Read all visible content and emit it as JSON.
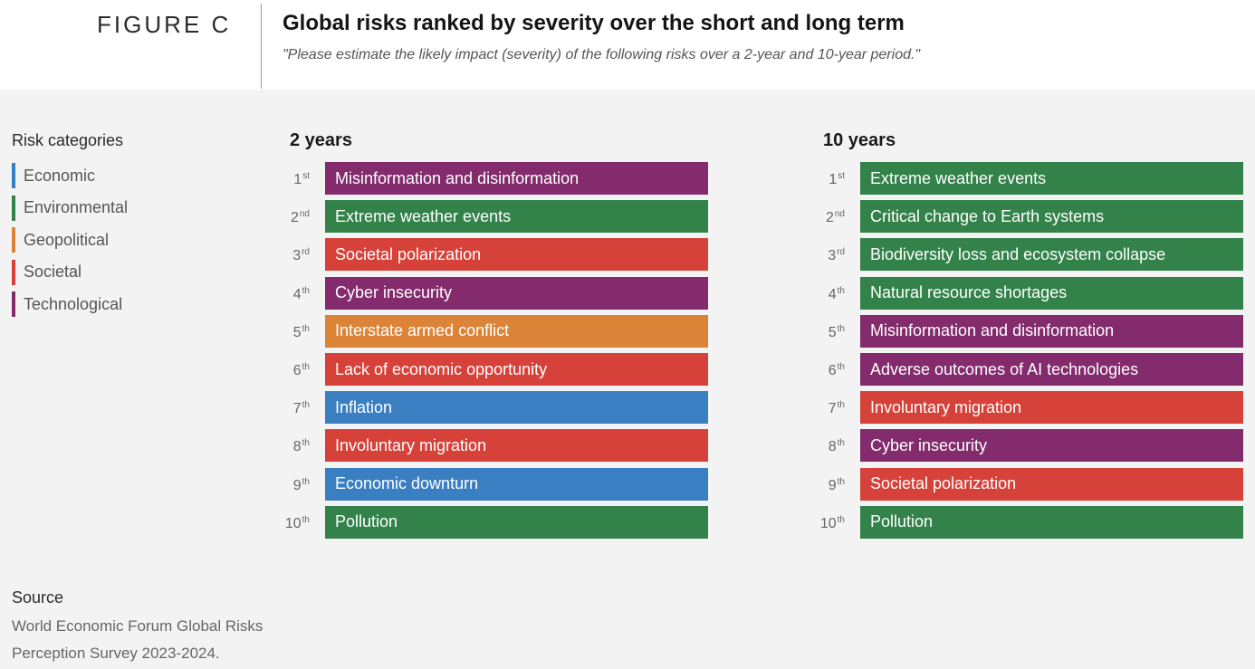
{
  "figure_label": "FIGURE C",
  "title": "Global risks ranked by severity over the short and long term",
  "subtitle": "\"Please estimate the likely impact (severity) of the following risks over a 2-year and 10-year period.\"",
  "legend": {
    "title": "Risk categories",
    "items": [
      {
        "label": "Economic",
        "color": "#3a7fc1"
      },
      {
        "label": "Environmental",
        "color": "#33824a"
      },
      {
        "label": "Geopolitical",
        "color": "#db8438"
      },
      {
        "label": "Societal",
        "color": "#d6423a"
      },
      {
        "label": "Technological",
        "color": "#832b6c"
      }
    ]
  },
  "chart_data": {
    "type": "table",
    "title": "Global risks ranked by severity over the short and long term",
    "panels": [
      {
        "title": "2 years",
        "rows": [
          {
            "rank": 1,
            "suffix": "st",
            "label": "Misinformation and disinformation",
            "category": "Technological"
          },
          {
            "rank": 2,
            "suffix": "nd",
            "label": "Extreme weather events",
            "category": "Environmental"
          },
          {
            "rank": 3,
            "suffix": "rd",
            "label": "Societal polarization",
            "category": "Societal"
          },
          {
            "rank": 4,
            "suffix": "th",
            "label": "Cyber insecurity",
            "category": "Technological"
          },
          {
            "rank": 5,
            "suffix": "th",
            "label": "Interstate armed conflict",
            "category": "Geopolitical"
          },
          {
            "rank": 6,
            "suffix": "th",
            "label": "Lack of economic opportunity",
            "category": "Societal"
          },
          {
            "rank": 7,
            "suffix": "th",
            "label": "Inflation",
            "category": "Economic"
          },
          {
            "rank": 8,
            "suffix": "th",
            "label": "Involuntary migration",
            "category": "Societal"
          },
          {
            "rank": 9,
            "suffix": "th",
            "label": "Economic downturn",
            "category": "Economic"
          },
          {
            "rank": 10,
            "suffix": "th",
            "label": "Pollution",
            "category": "Environmental"
          }
        ]
      },
      {
        "title": "10 years",
        "rows": [
          {
            "rank": 1,
            "suffix": "st",
            "label": "Extreme weather events",
            "category": "Environmental"
          },
          {
            "rank": 2,
            "suffix": "nd",
            "label": "Critical change to Earth systems",
            "category": "Environmental"
          },
          {
            "rank": 3,
            "suffix": "rd",
            "label": "Biodiversity loss and ecosystem collapse",
            "category": "Environmental"
          },
          {
            "rank": 4,
            "suffix": "th",
            "label": "Natural resource shortages",
            "category": "Environmental"
          },
          {
            "rank": 5,
            "suffix": "th",
            "label": "Misinformation and disinformation",
            "category": "Technological"
          },
          {
            "rank": 6,
            "suffix": "th",
            "label": "Adverse outcomes of AI technologies",
            "category": "Technological"
          },
          {
            "rank": 7,
            "suffix": "th",
            "label": "Involuntary migration",
            "category": "Societal"
          },
          {
            "rank": 8,
            "suffix": "th",
            "label": "Cyber insecurity",
            "category": "Technological"
          },
          {
            "rank": 9,
            "suffix": "th",
            "label": "Societal polarization",
            "category": "Societal"
          },
          {
            "rank": 10,
            "suffix": "th",
            "label": "Pollution",
            "category": "Environmental"
          }
        ]
      }
    ]
  },
  "source": {
    "title": "Source",
    "lines": [
      "World Economic Forum Global Risks",
      "Perception Survey 2023-2024."
    ]
  }
}
